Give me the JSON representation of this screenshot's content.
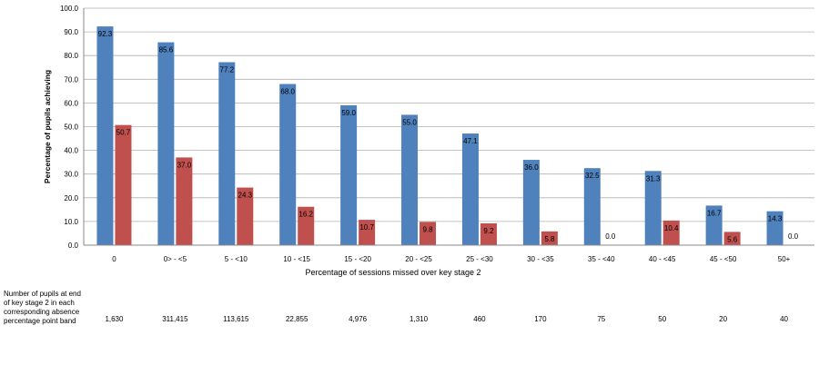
{
  "chart_data": {
    "type": "bar",
    "categories": [
      "0",
      "0> - <5",
      "5 - <10",
      "10 - <15",
      "15 - <20",
      "20 - <25",
      "25 - <30",
      "30 - <35",
      "35 - <40",
      "40 - <45",
      "45 - <50",
      "50+"
    ],
    "series": [
      {
        "values": [
          92.3,
          85.6,
          77.2,
          68.0,
          59.0,
          55.0,
          47.1,
          36.0,
          32.5,
          31.3,
          16.7,
          14.3
        ],
        "color": "#4f81bd"
      },
      {
        "values": [
          50.7,
          37.0,
          24.3,
          16.2,
          10.7,
          9.8,
          9.2,
          5.8,
          0.0,
          10.4,
          5.6,
          0.0
        ],
        "color": "#c0504d"
      }
    ],
    "data_labels": [
      [
        "92.3",
        "85.6",
        "77.2",
        "68.0",
        "59.0",
        "55.0",
        "47.1",
        "36.0",
        "32.5",
        "31.3",
        "16.7",
        "14.3"
      ],
      [
        "50.7",
        "37.0",
        "24.3",
        "16.2",
        "10.7",
        "9.8",
        "9.2",
        "5.8",
        "0.0",
        "10.4",
        "5.6",
        "0.0"
      ]
    ],
    "xlabel": "Percentage of sessions missed over key stage 2",
    "ylabel": "Percentage of pupils achieving",
    "ylim": [
      0,
      100
    ],
    "yticks": [
      "0.0",
      "10.0",
      "20.0",
      "30.0",
      "40.0",
      "50.0",
      "60.0",
      "70.0",
      "80.0",
      "90.0",
      "100.0"
    ],
    "grid": true,
    "legend": "none"
  },
  "table": {
    "row_label": "Number of pupils at end of key stage 2 in each corresponding absence percentage point band",
    "counts": [
      "1,630",
      "311,415",
      "113,615",
      "22,855",
      "4,976",
      "1,310",
      "460",
      "170",
      "75",
      "50",
      "20",
      "40"
    ]
  }
}
